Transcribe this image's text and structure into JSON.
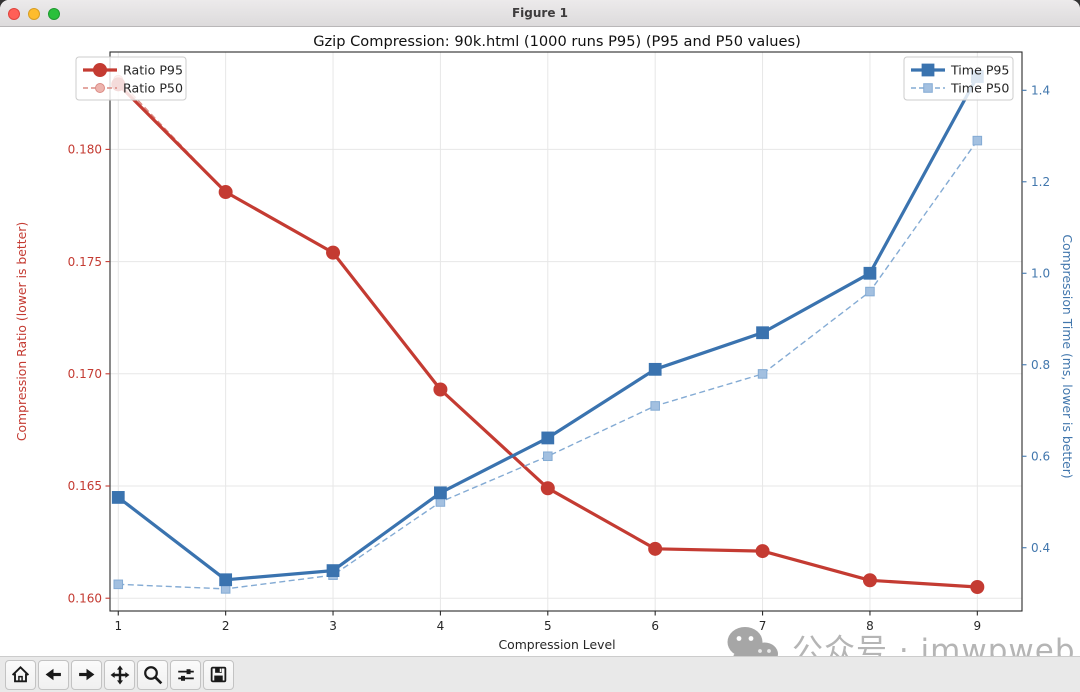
{
  "window": {
    "title": "Figure 1"
  },
  "chart_data": {
    "type": "line",
    "title": "Gzip Compression: 90k.html (1000 runs P95) (P95 and P50 values)",
    "xlabel": "Compression Level",
    "x": [
      1,
      2,
      3,
      4,
      5,
      6,
      7,
      8,
      9
    ],
    "x_tick_labels": [
      "1",
      "2",
      "3",
      "4",
      "5",
      "6",
      "7",
      "8",
      "9"
    ],
    "xlim": [
      0.923,
      9.416
    ],
    "grid": true,
    "series": [
      {
        "name": "Ratio P95",
        "axis": "left",
        "style": "solid",
        "marker": "circle",
        "color": "#c43b32",
        "marker_fill": "#c43b32",
        "line_width": 3.2,
        "marker_size": 6.5,
        "values": [
          0.1829,
          0.1781,
          0.1754,
          0.1693,
          0.1649,
          0.1622,
          0.1621,
          0.1608,
          0.1605
        ]
      },
      {
        "name": "Ratio P50",
        "axis": "left",
        "style": "dashed",
        "marker": "circle",
        "color": "#dc8b84",
        "marker_fill": "#edb4ae",
        "line_width": 1.4,
        "marker_size": 4.5,
        "values": [
          0.1831,
          0.1781,
          0.1754,
          0.1693,
          0.1649,
          0.1622,
          0.1621,
          0.1608,
          0.1605
        ]
      },
      {
        "name": "Time P95",
        "axis": "right",
        "style": "solid",
        "marker": "square",
        "color": "#3a73af",
        "marker_fill": "#3a73af",
        "line_width": 3.2,
        "marker_size": 6.2,
        "values": [
          0.51,
          0.33,
          0.35,
          0.52,
          0.64,
          0.79,
          0.87,
          1.0,
          1.43
        ]
      },
      {
        "name": "Time P50",
        "axis": "right",
        "style": "dashed",
        "marker": "square",
        "color": "#84abd4",
        "marker_fill": "#a3c0e0",
        "line_width": 1.4,
        "marker_size": 4.5,
        "values": [
          0.32,
          0.31,
          0.34,
          0.5,
          0.6,
          0.71,
          0.78,
          0.96,
          1.29
        ]
      }
    ],
    "left_axis": {
      "label": "Compression Ratio (lower is better)",
      "color": "#c43b32",
      "tick_labels": [
        "0.160",
        "0.165",
        "0.170",
        "0.175",
        "0.180"
      ],
      "tick_values": [
        0.16,
        0.165,
        0.17,
        0.175,
        0.18
      ],
      "range": [
        0.15943,
        0.18434
      ]
    },
    "right_axis": {
      "label": "Compression Time (ms, lower is better)",
      "color": "#4277ad",
      "tick_labels": [
        "0.4",
        "0.6",
        "0.8",
        "1.0",
        "1.2",
        "1.4"
      ],
      "tick_values": [
        0.4,
        0.6,
        0.8,
        1.0,
        1.2,
        1.4
      ],
      "range": [
        0.2617,
        1.4837
      ]
    },
    "legends": [
      {
        "position": "upper-left",
        "entries": [
          "Ratio P95",
          "Ratio P50"
        ]
      },
      {
        "position": "upper-right",
        "entries": [
          "Time P95",
          "Time P50"
        ]
      }
    ]
  },
  "watermark": {
    "text": "公众号 · imwpweb",
    "icon": "wechat-icon"
  },
  "toolbar": {
    "buttons": [
      "home",
      "back",
      "forward",
      "pan",
      "zoom-to-rect",
      "configure-subplots",
      "save"
    ]
  }
}
